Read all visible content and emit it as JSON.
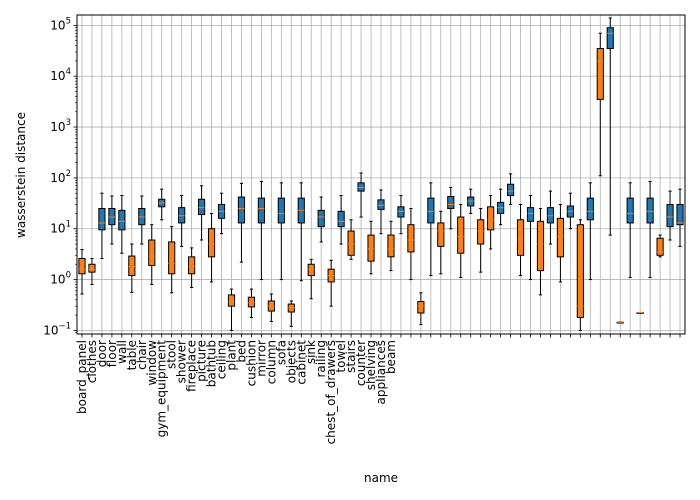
{
  "chart_data": {
    "type": "boxplot",
    "title": "",
    "xlabel": "name",
    "ylabel": "wasserstein distance",
    "yscale": "log",
    "ylim": [
      0.085,
      160000
    ],
    "grid": true,
    "colors": {
      "blue": "#1f77b4",
      "orange": "#ff7f0e",
      "red": "#d62728",
      "median": "#ff7f0e",
      "text": "#000000"
    },
    "y_ticks": [
      {
        "value": 0.1,
        "base": "10",
        "exp": "−1"
      },
      {
        "value": 1,
        "base": "10",
        "exp": "0"
      },
      {
        "value": 10,
        "base": "10",
        "exp": "1"
      },
      {
        "value": 100,
        "base": "10",
        "exp": "2"
      },
      {
        "value": 1000,
        "base": "10",
        "exp": "3"
      },
      {
        "value": 10000,
        "base": "10",
        "exp": "4"
      },
      {
        "value": 100000,
        "base": "10",
        "exp": "5"
      }
    ],
    "categories": [
      {
        "name": "board_panel",
        "label_color": "red",
        "box_color": "orange",
        "whislo": 0.52,
        "q1": 1.3,
        "med": 1.6,
        "q3": 2.6,
        "whishi": 3.9
      },
      {
        "name": "clothes",
        "label_color": "red",
        "box_color": "orange",
        "whislo": 0.8,
        "q1": 1.4,
        "med": 1.6,
        "q3": 2.0,
        "whishi": 2.6
      },
      {
        "name": "door",
        "label_color": "blue",
        "box_color": "blue",
        "whislo": 2.6,
        "q1": 9.5,
        "med": 13,
        "q3": 25,
        "whishi": 50
      },
      {
        "name": "floor",
        "label_color": "blue",
        "box_color": "blue",
        "whislo": 5.0,
        "q1": 12,
        "med": 17,
        "q3": 25,
        "whishi": 44
      },
      {
        "name": "wall",
        "label_color": "blue",
        "box_color": "blue",
        "whislo": 3.3,
        "q1": 9.5,
        "med": 14,
        "q3": 23,
        "whishi": 45
      },
      {
        "name": "table",
        "label_color": "black",
        "box_color": "orange",
        "whislo": 0.56,
        "q1": 1.2,
        "med": 1.8,
        "q3": 2.9,
        "whishi": 5.0
      },
      {
        "name": "chair",
        "label_color": "blue",
        "box_color": "blue",
        "whislo": 5.0,
        "q1": 12,
        "med": 17,
        "q3": 25,
        "whishi": 44
      },
      {
        "name": "window",
        "label_color": "blue",
        "box_color": "orange",
        "whislo": 0.8,
        "q1": 1.9,
        "med": 2.9,
        "q3": 6.0,
        "whishi": 12
      },
      {
        "name": "gym_equipment",
        "label_color": "red",
        "box_color": "blue",
        "whislo": 15,
        "q1": 27,
        "med": 32,
        "q3": 38,
        "whishi": 60
      },
      {
        "name": "stool",
        "label_color": "black",
        "box_color": "orange",
        "whislo": 0.55,
        "q1": 1.3,
        "med": 2.1,
        "q3": 5.5,
        "whishi": 11
      },
      {
        "name": "shower",
        "label_color": "black",
        "box_color": "blue",
        "whislo": 4.5,
        "q1": 13,
        "med": 18,
        "q3": 26,
        "whishi": 45
      },
      {
        "name": "fireplace",
        "label_color": "red",
        "box_color": "orange",
        "whislo": 0.7,
        "q1": 1.3,
        "med": 1.8,
        "q3": 2.8,
        "whishi": 4.2
      },
      {
        "name": "picture",
        "label_color": "blue",
        "box_color": "blue",
        "whislo": 6.0,
        "q1": 19,
        "med": 26,
        "q3": 38,
        "whishi": 70
      },
      {
        "name": "bathtub",
        "label_color": "red",
        "box_color": "orange",
        "whislo": 0.9,
        "q1": 2.8,
        "med": 5.0,
        "q3": 10,
        "whishi": 20
      },
      {
        "name": "ceiling",
        "label_color": "blue",
        "box_color": "blue",
        "whislo": 8.0,
        "q1": 16,
        "med": 22,
        "q3": 30,
        "whishi": 50
      },
      {
        "name": "plant",
        "label_color": "black",
        "box_color": "orange",
        "whislo": 0.1,
        "q1": 0.3,
        "med": 0.37,
        "q3": 0.5,
        "whishi": 0.65
      },
      {
        "name": "bed",
        "label_color": "black",
        "box_color": "blue",
        "whislo": 2.2,
        "q1": 13,
        "med": 25,
        "q3": 42,
        "whishi": 78
      },
      {
        "name": "cushion",
        "label_color": "black",
        "box_color": "orange",
        "whislo": 0.18,
        "q1": 0.29,
        "med": 0.35,
        "q3": 0.45,
        "whishi": 0.65
      },
      {
        "name": "mirror",
        "label_color": "black",
        "box_color": "blue",
        "whislo": 1.0,
        "q1": 13,
        "med": 25,
        "q3": 40,
        "whishi": 85
      },
      {
        "name": "column",
        "label_color": "black",
        "box_color": "orange",
        "whislo": 0.15,
        "q1": 0.24,
        "med": 0.3,
        "q3": 0.38,
        "whishi": 0.52
      },
      {
        "name": "sofa",
        "label_color": "black",
        "box_color": "blue",
        "whislo": 1.0,
        "q1": 13,
        "med": 20,
        "q3": 40,
        "whishi": 80
      },
      {
        "name": "objects",
        "label_color": "blue",
        "box_color": "orange",
        "whislo": 0.12,
        "q1": 0.23,
        "med": 0.28,
        "q3": 0.33,
        "whishi": 0.38
      },
      {
        "name": "cabinet",
        "label_color": "black",
        "box_color": "blue",
        "whislo": 0.95,
        "q1": 13,
        "med": 23,
        "q3": 40,
        "whishi": 80
      },
      {
        "name": "sink",
        "label_color": "black",
        "box_color": "orange",
        "whislo": 0.42,
        "q1": 1.2,
        "med": 1.6,
        "q3": 2.0,
        "whishi": 2.5
      },
      {
        "name": "railing",
        "label_color": "black",
        "box_color": "blue",
        "whislo": 5.5,
        "q1": 11,
        "med": 17,
        "q3": 23,
        "whishi": 42
      },
      {
        "name": "chest_of_drawers",
        "label_color": "black",
        "box_color": "orange",
        "whislo": 0.3,
        "q1": 0.9,
        "med": 1.2,
        "q3": 1.6,
        "whishi": 2.4
      },
      {
        "name": "towel",
        "label_color": "black",
        "box_color": "blue",
        "whislo": 5.0,
        "q1": 11,
        "med": 14,
        "q3": 22,
        "whishi": 45
      },
      {
        "name": "stairs",
        "label_color": "black",
        "box_color": "orange",
        "whislo": 2.5,
        "q1": 3.0,
        "med": 5.0,
        "q3": 9.0,
        "whishi": 15
      },
      {
        "name": "counter",
        "label_color": "black",
        "box_color": "blue",
        "whislo": 17,
        "q1": 55,
        "med": 65,
        "q3": 80,
        "whishi": 125
      },
      {
        "name": "shelving",
        "label_color": "black",
        "box_color": "orange",
        "whislo": 1.3,
        "q1": 2.3,
        "med": 4.0,
        "q3": 7.5,
        "whishi": 14
      },
      {
        "name": "appliances",
        "label_color": "black",
        "box_color": "blue",
        "whislo": 8.0,
        "q1": 24,
        "med": 29,
        "q3": 37,
        "whishi": 58
      },
      {
        "name": "beam",
        "label_color": "red",
        "box_color": "orange",
        "whislo": 1.5,
        "q1": 2.8,
        "med": 4.0,
        "q3": 7.5,
        "whishi": 14
      },
      {
        "name": "",
        "label_color": "black",
        "box_color": "blue",
        "whislo": 8.0,
        "q1": 17,
        "med": 22,
        "q3": 27,
        "whishi": 45
      },
      {
        "name": "",
        "label_color": "black",
        "box_color": "orange",
        "whislo": 1.0,
        "q1": 3.5,
        "med": 6.0,
        "q3": 12,
        "whishi": 25
      },
      {
        "name": "",
        "label_color": "black",
        "box_color": "orange",
        "whislo": 0.13,
        "q1": 0.22,
        "med": 0.3,
        "q3": 0.37,
        "whishi": 0.55
      },
      {
        "name": "",
        "label_color": "black",
        "box_color": "blue",
        "whislo": 1.2,
        "q1": 13,
        "med": 22,
        "q3": 40,
        "whishi": 80
      },
      {
        "name": "",
        "label_color": "black",
        "box_color": "orange",
        "whislo": 1.3,
        "q1": 4.5,
        "med": 9.0,
        "q3": 13,
        "whishi": 22
      },
      {
        "name": "",
        "label_color": "black",
        "box_color": "blue",
        "whislo": 10,
        "q1": 25,
        "med": 30,
        "q3": 43,
        "whishi": 65
      },
      {
        "name": "",
        "label_color": "black",
        "box_color": "orange",
        "whislo": 1.1,
        "q1": 3.3,
        "med": 7.0,
        "q3": 17,
        "whishi": 30
      },
      {
        "name": "",
        "label_color": "black",
        "box_color": "blue",
        "whislo": 20,
        "q1": 28,
        "med": 35,
        "q3": 42,
        "whishi": 60
      },
      {
        "name": "",
        "label_color": "black",
        "box_color": "orange",
        "whislo": 1.4,
        "q1": 5.0,
        "med": 9.0,
        "q3": 15,
        "whishi": 25
      },
      {
        "name": "",
        "label_color": "black",
        "box_color": "orange",
        "whislo": 4.0,
        "q1": 9.5,
        "med": 15,
        "q3": 27,
        "whishi": 45
      },
      {
        "name": "",
        "label_color": "black",
        "box_color": "blue",
        "whislo": 12,
        "q1": 20,
        "med": 26,
        "q3": 33,
        "whishi": 60
      },
      {
        "name": "",
        "label_color": "black",
        "box_color": "blue",
        "whislo": 30,
        "q1": 45,
        "med": 55,
        "q3": 75,
        "whishi": 120
      },
      {
        "name": "",
        "label_color": "black",
        "box_color": "orange",
        "whislo": 1.2,
        "q1": 3.0,
        "med": 6.0,
        "q3": 15,
        "whishi": 30
      },
      {
        "name": "",
        "label_color": "black",
        "box_color": "blue",
        "whislo": 1.0,
        "q1": 14,
        "med": 20,
        "q3": 26,
        "whishi": 45
      },
      {
        "name": "",
        "label_color": "black",
        "box_color": "orange",
        "whislo": 0.5,
        "q1": 1.5,
        "med": 5.0,
        "q3": 14,
        "whishi": 25
      },
      {
        "name": "",
        "label_color": "black",
        "box_color": "blue",
        "whislo": 5.0,
        "q1": 13,
        "med": 18,
        "q3": 26,
        "whishi": 55
      },
      {
        "name": "",
        "label_color": "black",
        "box_color": "orange",
        "whislo": 0.9,
        "q1": 2.8,
        "med": 7.0,
        "q3": 16,
        "whishi": 30
      },
      {
        "name": "",
        "label_color": "black",
        "box_color": "blue",
        "whislo": 10,
        "q1": 17,
        "med": 22,
        "q3": 28,
        "whishi": 50
      },
      {
        "name": "",
        "label_color": "black",
        "box_color": "orange",
        "whislo": 0.1,
        "q1": 0.18,
        "med": 0.3,
        "q3": 12,
        "whishi": 15
      },
      {
        "name": "",
        "label_color": "black",
        "box_color": "blue",
        "whislo": 1.0,
        "q1": 15,
        "med": 22,
        "q3": 40,
        "whishi": 80
      },
      {
        "name": "",
        "label_color": "black",
        "box_color": "orange",
        "whislo": 110,
        "q1": 3500,
        "med": 20000,
        "q3": 35000,
        "whishi": 70000
      },
      {
        "name": "",
        "label_color": "black",
        "box_color": "blue",
        "whislo": 7.5,
        "q1": 35000,
        "med": 70000,
        "q3": 90000,
        "whishi": 140000
      },
      {
        "name": "",
        "label_color": "black",
        "box_color": "orange",
        "whislo": 0.145,
        "q1": 0.145,
        "med": 0.145,
        "q3": 0.145,
        "whishi": 0.145
      },
      {
        "name": "",
        "label_color": "black",
        "box_color": "blue",
        "whislo": 1.1,
        "q1": 13,
        "med": 20,
        "q3": 40,
        "whishi": 80
      },
      {
        "name": "",
        "label_color": "black",
        "box_color": "orange",
        "whislo": 0.225,
        "q1": 0.225,
        "med": 0.225,
        "q3": 0.225,
        "whishi": 0.225
      },
      {
        "name": "",
        "label_color": "black",
        "box_color": "blue",
        "whislo": 1.1,
        "q1": 13,
        "med": 22,
        "q3": 40,
        "whishi": 85
      },
      {
        "name": "",
        "label_color": "black",
        "box_color": "orange",
        "whislo": 2.8,
        "q1": 3.0,
        "med": 3.5,
        "q3": 6.5,
        "whishi": 7.5
      },
      {
        "name": "",
        "label_color": "black",
        "box_color": "blue",
        "whislo": 6.0,
        "q1": 11,
        "med": 17,
        "q3": 30,
        "whishi": 55
      },
      {
        "name": "",
        "label_color": "black",
        "box_color": "blue",
        "whislo": 4.5,
        "q1": 12,
        "med": 13,
        "q3": 30,
        "whishi": 60
      }
    ]
  }
}
